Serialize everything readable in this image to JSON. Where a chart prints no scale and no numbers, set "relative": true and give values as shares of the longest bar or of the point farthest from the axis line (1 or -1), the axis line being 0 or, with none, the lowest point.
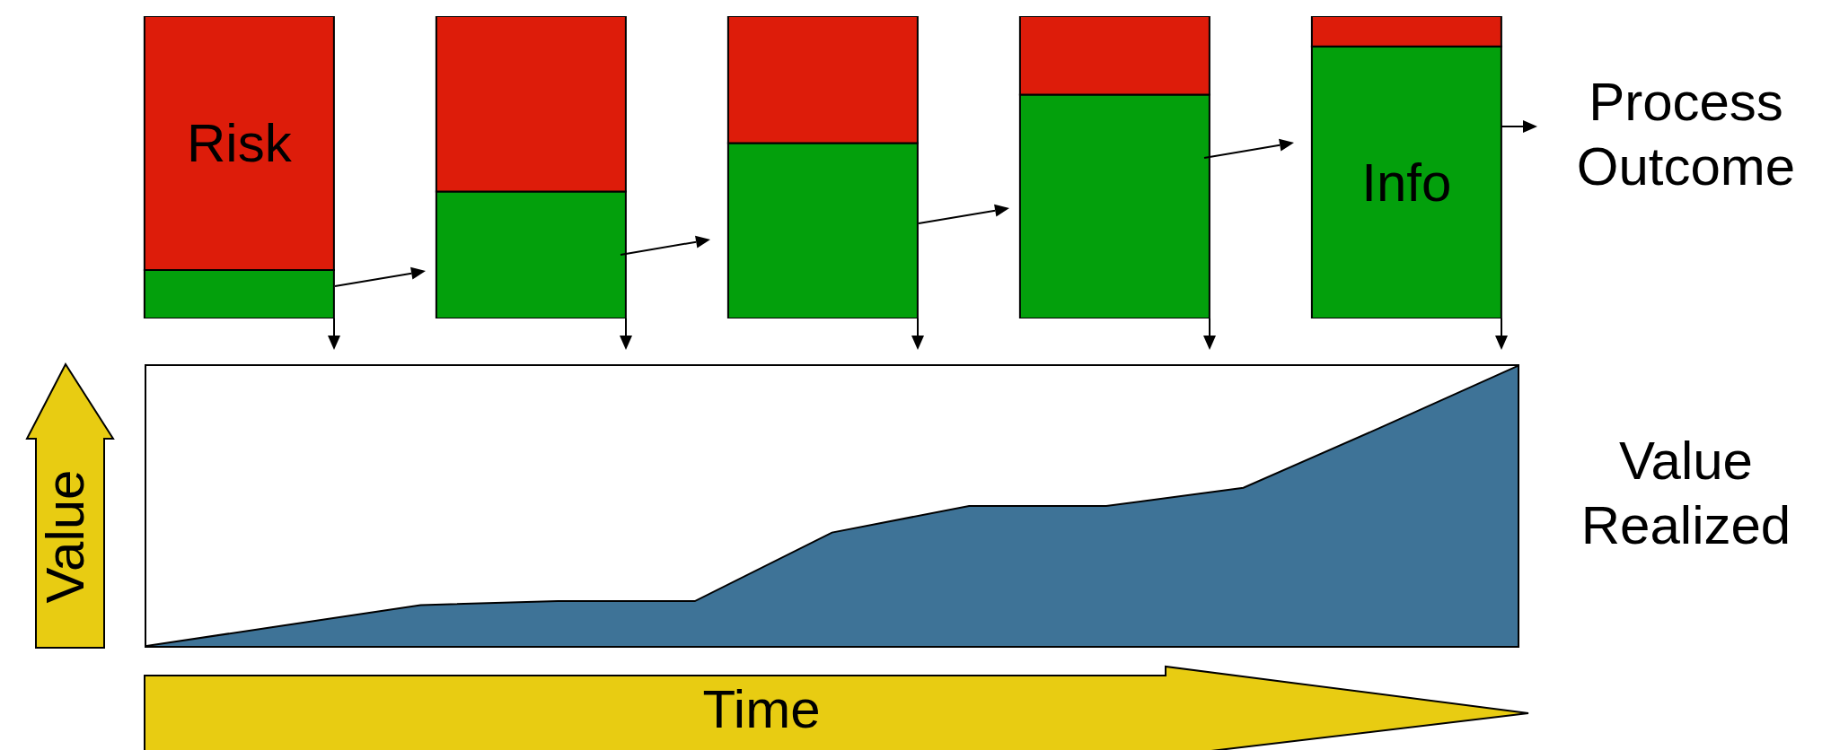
{
  "chart_data": [
    {
      "type": "bar",
      "stacked": true,
      "relative": true,
      "categories": [
        null,
        null,
        null,
        null,
        null
      ],
      "annotations": [
        "Process Outcome"
      ],
      "series": [
        {
          "name": "Info",
          "color": "#03a00c",
          "values": [
            0.16,
            0.42,
            0.58,
            0.74,
            0.9
          ]
        },
        {
          "name": "Risk",
          "color": "#dd1c0a",
          "values": [
            0.84,
            0.58,
            0.42,
            0.26,
            0.1
          ]
        }
      ]
    },
    {
      "type": "area",
      "relative": true,
      "categories": [
        null,
        null,
        null,
        null,
        null,
        null,
        null,
        null,
        null,
        null,
        null
      ],
      "xlabel": "Time",
      "ylabel": "Value",
      "annotations": [
        "Value Realized"
      ],
      "color": "#3e7397",
      "values": [
        0,
        0.073,
        0.146,
        0.16,
        0.16,
        0.405,
        0.5,
        0.5,
        0.565,
        0.78,
        1
      ]
    }
  ]
}
